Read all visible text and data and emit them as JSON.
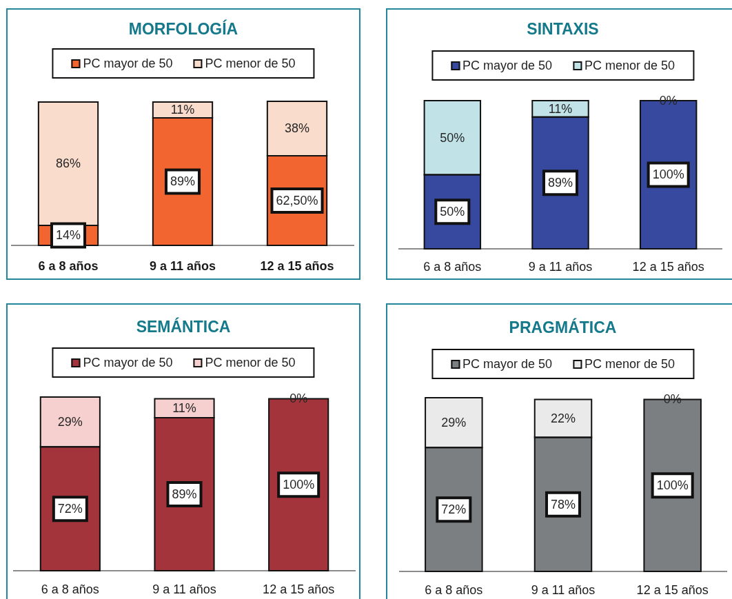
{
  "chart_data": [
    {
      "type": "bar",
      "title": "MORFOLOGÍA",
      "categories": [
        "6 a 8 años",
        "9 a 11 años",
        "12 a 15 años"
      ],
      "series": [
        {
          "name": "PC mayor de 50",
          "color": "#f26430",
          "values": [
            14,
            89,
            62.5
          ],
          "value_labels": [
            "14%",
            "89%",
            "62,50%"
          ]
        },
        {
          "name": "PC menor de 50",
          "color": "#f9dccc",
          "values": [
            86,
            11,
            38
          ],
          "value_labels": [
            "86%",
            "11%",
            "38%"
          ]
        }
      ],
      "stacked": true,
      "legend": "top",
      "tick_labels": "x"
    },
    {
      "type": "bar",
      "title": "SINTAXIS",
      "categories": [
        "6 a 8 años",
        "9 a 11 años",
        "12 a 15 años"
      ],
      "series": [
        {
          "name": "PC mayor de 50",
          "color": "#36499e",
          "values": [
            50,
            89,
            100
          ],
          "value_labels": [
            "50%",
            "89%",
            "100%"
          ]
        },
        {
          "name": "PC menor de 50",
          "color": "#c1e3e8",
          "values": [
            50,
            11,
            0
          ],
          "value_labels": [
            "50%",
            "11%",
            "0%"
          ]
        }
      ],
      "stacked": true,
      "legend": "top",
      "tick_labels": "x"
    },
    {
      "type": "bar",
      "title": "SEMÁNTICA",
      "categories": [
        "6 a 8 años",
        "9 a 11 años",
        "12 a 15 años"
      ],
      "series": [
        {
          "name": "PC mayor de 50",
          "color": "#a3343c",
          "values": [
            72,
            89,
            100
          ],
          "value_labels": [
            "72%",
            "89%",
            "100%"
          ]
        },
        {
          "name": "PC menor de 50",
          "color": "#f5d0cf",
          "values": [
            29,
            11,
            0
          ],
          "value_labels": [
            "29%",
            "11%",
            "0%"
          ]
        }
      ],
      "stacked": true,
      "legend": "top",
      "tick_labels": "x"
    },
    {
      "type": "bar",
      "title": "PRAGMÁTICA",
      "categories": [
        "6 a 8 años",
        "9 a 11 años",
        "12 a 15 años"
      ],
      "series": [
        {
          "name": "PC mayor de 50",
          "color": "#7c7f81",
          "values": [
            72,
            78,
            100
          ],
          "value_labels": [
            "72%",
            "78%",
            "100%"
          ]
        },
        {
          "name": "PC menor de 50",
          "color": "#eaeaeb",
          "values": [
            29,
            22,
            0
          ],
          "value_labels": [
            "29%",
            "22%",
            "0%"
          ]
        }
      ],
      "stacked": true,
      "legend": "top",
      "tick_labels": "x"
    }
  ]
}
